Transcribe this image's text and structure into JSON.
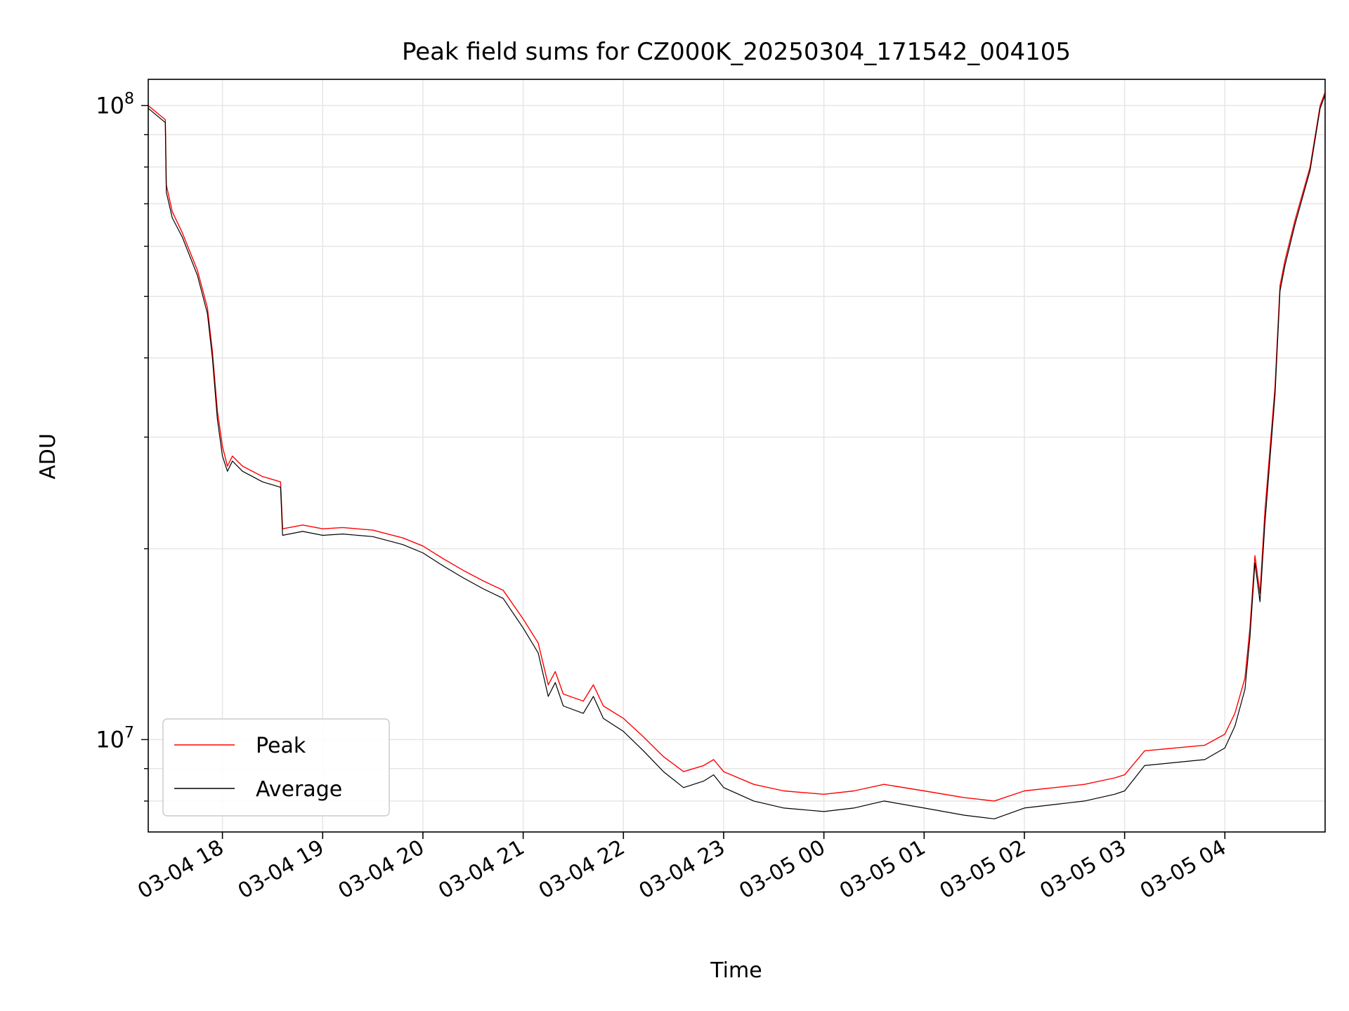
{
  "chart_data": {
    "type": "line",
    "title": "Peak field sums for CZ000K_20250304_171542_004105",
    "xlabel": "Time",
    "ylabel": "ADU",
    "yscale": "log",
    "ylim": [
      7150000,
      110000000
    ],
    "xlim_hours": [
      17.26,
      29.0
    ],
    "grid": true,
    "legend_position": "lower-left",
    "x_ticks": [
      {
        "hour": 18,
        "label": "03-04 18"
      },
      {
        "hour": 19,
        "label": "03-04 19"
      },
      {
        "hour": 20,
        "label": "03-04 20"
      },
      {
        "hour": 21,
        "label": "03-04 21"
      },
      {
        "hour": 22,
        "label": "03-04 22"
      },
      {
        "hour": 23,
        "label": "03-04 23"
      },
      {
        "hour": 24,
        "label": "03-05 00"
      },
      {
        "hour": 25,
        "label": "03-05 01"
      },
      {
        "hour": 26,
        "label": "03-05 02"
      },
      {
        "hour": 27,
        "label": "03-05 03"
      },
      {
        "hour": 28,
        "label": "03-05 04"
      }
    ],
    "y_ticks": [
      {
        "value": 10000000,
        "base": "10",
        "exp": "7"
      },
      {
        "value": 100000000,
        "base": "10",
        "exp": "8"
      }
    ],
    "series": [
      {
        "name": "Peak",
        "color": "#ff0000",
        "points": [
          [
            17.26,
            100000000
          ],
          [
            17.43,
            95000000
          ],
          [
            17.44,
            75000000
          ],
          [
            17.5,
            68000000
          ],
          [
            17.6,
            63000000
          ],
          [
            17.75,
            55000000
          ],
          [
            17.85,
            48000000
          ],
          [
            17.9,
            41000000
          ],
          [
            17.95,
            33000000
          ],
          [
            18.0,
            29000000
          ],
          [
            18.05,
            27000000
          ],
          [
            18.1,
            28000000
          ],
          [
            18.2,
            27000000
          ],
          [
            18.4,
            26000000
          ],
          [
            18.58,
            25500000
          ],
          [
            18.6,
            21500000
          ],
          [
            18.8,
            21800000
          ],
          [
            19.0,
            21500000
          ],
          [
            19.2,
            21600000
          ],
          [
            19.5,
            21400000
          ],
          [
            19.8,
            20800000
          ],
          [
            20.0,
            20200000
          ],
          [
            20.2,
            19300000
          ],
          [
            20.4,
            18500000
          ],
          [
            20.6,
            17800000
          ],
          [
            20.8,
            17200000
          ],
          [
            21.0,
            15500000
          ],
          [
            21.15,
            14200000
          ],
          [
            21.25,
            12200000
          ],
          [
            21.32,
            12800000
          ],
          [
            21.4,
            11800000
          ],
          [
            21.6,
            11500000
          ],
          [
            21.7,
            12200000
          ],
          [
            21.8,
            11300000
          ],
          [
            22.0,
            10800000
          ],
          [
            22.2,
            10100000
          ],
          [
            22.4,
            9400000
          ],
          [
            22.6,
            8900000
          ],
          [
            22.8,
            9100000
          ],
          [
            22.9,
            9300000
          ],
          [
            23.0,
            8900000
          ],
          [
            23.3,
            8500000
          ],
          [
            23.6,
            8300000
          ],
          [
            24.0,
            8200000
          ],
          [
            24.3,
            8300000
          ],
          [
            24.6,
            8500000
          ],
          [
            25.0,
            8300000
          ],
          [
            25.4,
            8100000
          ],
          [
            25.7,
            8000000
          ],
          [
            26.0,
            8300000
          ],
          [
            26.3,
            8400000
          ],
          [
            26.6,
            8500000
          ],
          [
            26.9,
            8700000
          ],
          [
            27.0,
            8800000
          ],
          [
            27.2,
            9600000
          ],
          [
            27.5,
            9700000
          ],
          [
            27.8,
            9800000
          ],
          [
            28.0,
            10200000
          ],
          [
            28.1,
            11000000
          ],
          [
            28.2,
            12500000
          ],
          [
            28.25,
            15000000
          ],
          [
            28.3,
            19500000
          ],
          [
            28.35,
            17000000
          ],
          [
            28.4,
            23000000
          ],
          [
            28.5,
            36000000
          ],
          [
            28.55,
            52000000
          ],
          [
            28.6,
            57000000
          ],
          [
            28.7,
            66000000
          ],
          [
            28.85,
            80000000
          ],
          [
            28.95,
            100000000
          ],
          [
            29.0,
            105000000
          ]
        ]
      },
      {
        "name": "Average",
        "color": "#000000",
        "points": [
          [
            17.26,
            99000000
          ],
          [
            17.43,
            94000000
          ],
          [
            17.44,
            73000000
          ],
          [
            17.5,
            66500000
          ],
          [
            17.6,
            62000000
          ],
          [
            17.75,
            54000000
          ],
          [
            17.85,
            47000000
          ],
          [
            17.9,
            40000000
          ],
          [
            17.95,
            32000000
          ],
          [
            18.0,
            28000000
          ],
          [
            18.05,
            26500000
          ],
          [
            18.1,
            27500000
          ],
          [
            18.2,
            26500000
          ],
          [
            18.4,
            25500000
          ],
          [
            18.58,
            25000000
          ],
          [
            18.6,
            21000000
          ],
          [
            18.8,
            21300000
          ],
          [
            19.0,
            21000000
          ],
          [
            19.2,
            21100000
          ],
          [
            19.5,
            20900000
          ],
          [
            19.8,
            20300000
          ],
          [
            20.0,
            19700000
          ],
          [
            20.2,
            18800000
          ],
          [
            20.4,
            18000000
          ],
          [
            20.6,
            17300000
          ],
          [
            20.8,
            16700000
          ],
          [
            21.0,
            15000000
          ],
          [
            21.15,
            13700000
          ],
          [
            21.25,
            11700000
          ],
          [
            21.32,
            12300000
          ],
          [
            21.4,
            11300000
          ],
          [
            21.6,
            11000000
          ],
          [
            21.7,
            11700000
          ],
          [
            21.8,
            10800000
          ],
          [
            22.0,
            10300000
          ],
          [
            22.2,
            9600000
          ],
          [
            22.4,
            8900000
          ],
          [
            22.6,
            8400000
          ],
          [
            22.8,
            8600000
          ],
          [
            22.9,
            8800000
          ],
          [
            23.0,
            8400000
          ],
          [
            23.3,
            8000000
          ],
          [
            23.6,
            7800000
          ],
          [
            24.0,
            7700000
          ],
          [
            24.3,
            7800000
          ],
          [
            24.6,
            8000000
          ],
          [
            25.0,
            7800000
          ],
          [
            25.4,
            7600000
          ],
          [
            25.7,
            7500000
          ],
          [
            26.0,
            7800000
          ],
          [
            26.3,
            7900000
          ],
          [
            26.6,
            8000000
          ],
          [
            26.9,
            8200000
          ],
          [
            27.0,
            8300000
          ],
          [
            27.2,
            9100000
          ],
          [
            27.5,
            9200000
          ],
          [
            27.8,
            9300000
          ],
          [
            28.0,
            9700000
          ],
          [
            28.1,
            10500000
          ],
          [
            28.2,
            12000000
          ],
          [
            28.25,
            14500000
          ],
          [
            28.3,
            19000000
          ],
          [
            28.35,
            16500000
          ],
          [
            28.4,
            22000000
          ],
          [
            28.5,
            35000000
          ],
          [
            28.55,
            51000000
          ],
          [
            28.6,
            56000000
          ],
          [
            28.7,
            65000000
          ],
          [
            28.85,
            79000000
          ],
          [
            28.95,
            99000000
          ],
          [
            29.0,
            104000000
          ]
        ]
      }
    ]
  }
}
